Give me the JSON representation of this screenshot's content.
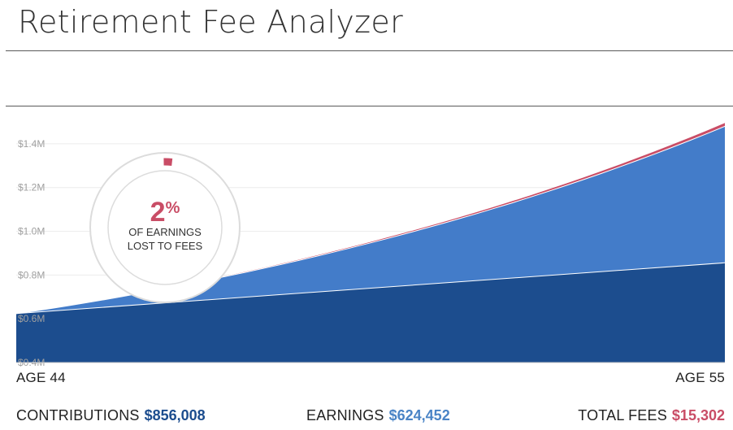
{
  "header": {
    "title": "Retirement Fee Analyzer"
  },
  "gauge": {
    "percent": "2",
    "percent_sign": "%",
    "line1": "OF EARNINGS",
    "line2": "LOST TO FEES"
  },
  "ages": {
    "start": "AGE 44",
    "end": "AGE 55"
  },
  "summary": {
    "contributions_label": "CONTRIBUTIONS",
    "contributions_value": "$856,008",
    "earnings_label": "EARNINGS",
    "earnings_value": "$624,452",
    "fees_label": "TOTAL FEES",
    "fees_value": "$15,302"
  },
  "colors": {
    "contributions": "#1c4d8e",
    "earnings": "#437cc9",
    "fees": "#c94d66",
    "earnings_text": "#4a84c6",
    "gauge_ring": "#dcdcdc"
  },
  "chart_data": {
    "type": "area",
    "x": [
      44,
      55
    ],
    "ylim": [
      0.4,
      1.5
    ],
    "yticks": [
      "$0.4M",
      "$0.6M",
      "$0.8M",
      "$1.0M",
      "$1.2M",
      "$1.4M"
    ],
    "ytick_values": [
      0.4,
      0.6,
      0.8,
      1.0,
      1.2,
      1.4
    ],
    "series": [
      {
        "name": "CONTRIBUTIONS",
        "values": [
          0.624,
          0.856
        ]
      },
      {
        "name": "EARNINGS",
        "values": [
          0.624,
          1.48
        ]
      },
      {
        "name": "TOTAL FEES",
        "values": [
          0.624,
          1.495
        ]
      }
    ],
    "fee_share": 0.02
  }
}
